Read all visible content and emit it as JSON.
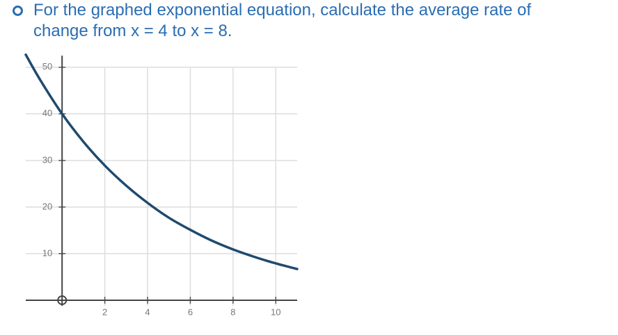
{
  "question": "For the graphed exponential equation, calculate the average rate of change from x = 4 to x = 8.",
  "chart_data": {
    "type": "line",
    "x": [
      -1.7,
      -1,
      0,
      1,
      2,
      3,
      4,
      5,
      6,
      7,
      8,
      9,
      10,
      11
    ],
    "series": [
      {
        "color": "#1f4a6e",
        "values": [
          52.7,
          47.1,
          40,
          34,
          28.9,
          24.6,
          20.9,
          17.7,
          15.1,
          12.8,
          10.9,
          9.3,
          7.9,
          6.7
        ]
      }
    ],
    "xlim": [
      -1.7,
      11
    ],
    "ylim": [
      -1.2,
      52.5
    ],
    "xticks": [
      2,
      4,
      6,
      8,
      10
    ],
    "yticks": [
      10,
      20,
      30,
      40,
      50
    ],
    "grid": true
  }
}
